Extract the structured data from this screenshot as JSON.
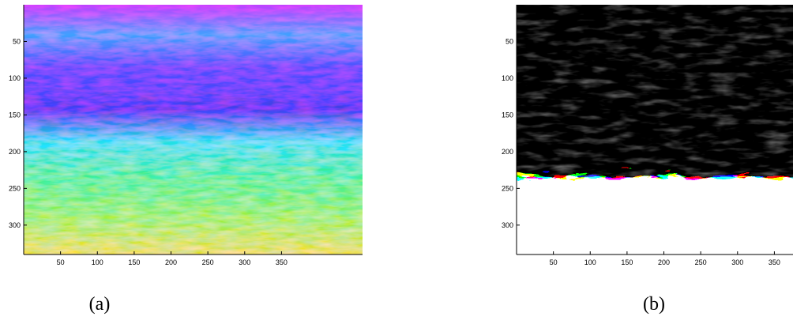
{
  "panels": [
    {
      "caption": "(a)",
      "xlim": [
        0,
        460
      ],
      "ylim": [
        0,
        340
      ],
      "xticks": [
        50,
        100,
        150,
        200,
        250,
        300,
        350
      ],
      "yticks": [
        50,
        100,
        150,
        200,
        250,
        300
      ]
    },
    {
      "caption": "(b)",
      "xlim": [
        0,
        460
      ],
      "ylim": [
        0,
        340
      ],
      "xticks": [
        50,
        100,
        150,
        200,
        250,
        300,
        350
      ],
      "yticks": [
        50,
        100,
        150,
        200,
        250,
        300
      ]
    }
  ]
}
